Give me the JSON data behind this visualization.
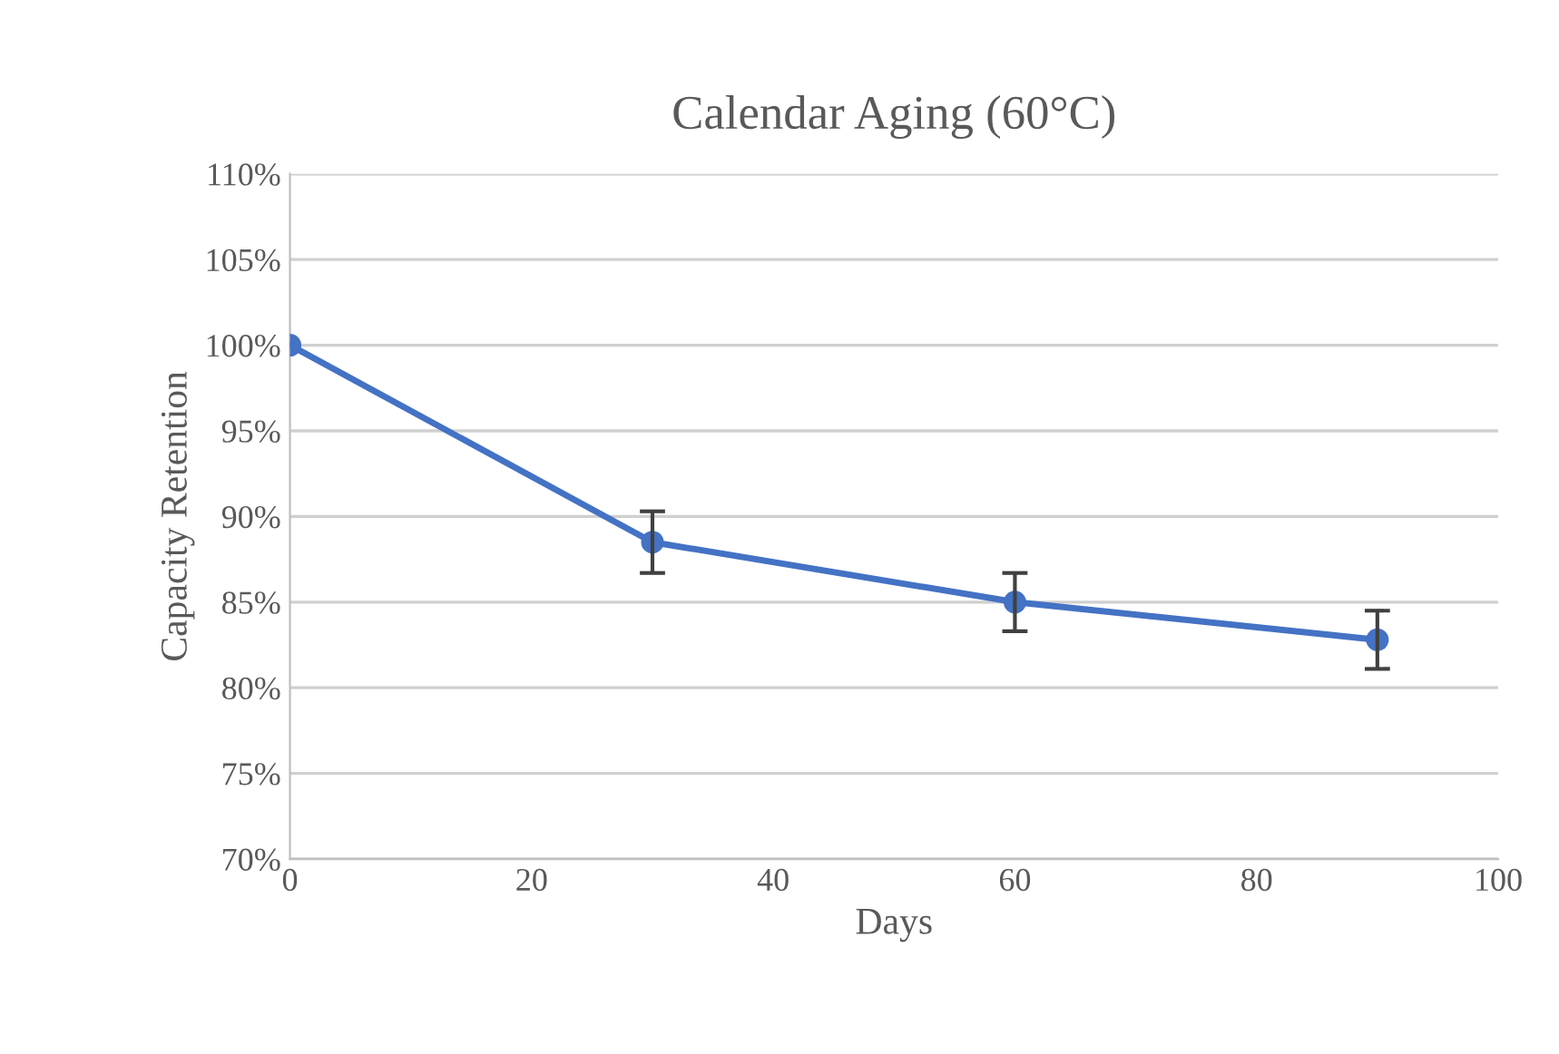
{
  "chart_data": {
    "type": "line",
    "title": "Calendar Aging (60°C)",
    "xlabel": "Days",
    "ylabel": "Capacity Retention",
    "x": [
      0,
      30,
      60,
      90
    ],
    "series": [
      {
        "color": "#4472c4",
        "values": [
          100,
          88.5,
          85.0,
          82.8
        ],
        "errors": [
          null,
          1.8,
          1.7,
          1.7
        ]
      }
    ],
    "xlim": [
      0,
      100
    ],
    "xticks": [
      0,
      20,
      40,
      60,
      80,
      100
    ],
    "ylim": [
      70,
      110
    ],
    "yticks": [
      {
        "value": 70,
        "label": "70%"
      },
      {
        "value": 75,
        "label": "75%"
      },
      {
        "value": 80,
        "label": "80%"
      },
      {
        "value": 85,
        "label": "85%"
      },
      {
        "value": 90,
        "label": "90%"
      },
      {
        "value": 95,
        "label": "95%"
      },
      {
        "value": 100,
        "label": "100%"
      },
      {
        "value": 105,
        "label": "105%"
      },
      {
        "value": 110,
        "label": "110%"
      }
    ],
    "grid": "y",
    "marker": "circle",
    "line_style": "solid",
    "legend": false
  }
}
